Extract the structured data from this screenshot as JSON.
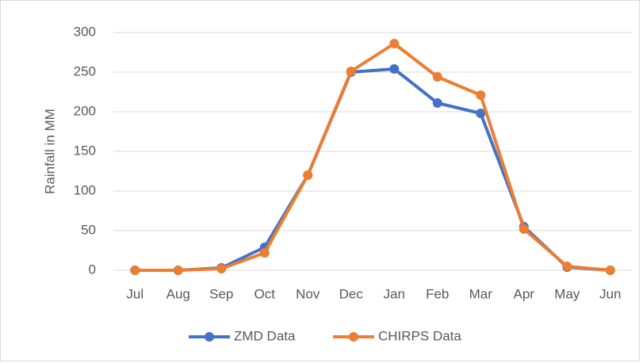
{
  "chart_data": {
    "type": "line",
    "y_label": "Rainfall in MM",
    "categories": [
      "Jul",
      "Aug",
      "Sep",
      "Oct",
      "Nov",
      "Dec",
      "Jan",
      "Feb",
      "Mar",
      "Apr",
      "May",
      "Jun"
    ],
    "series": [
      {
        "name": "ZMD Data",
        "color": "#4472c4",
        "values": [
          0,
          0,
          3,
          29,
          120,
          250,
          254,
          211,
          198,
          55,
          4,
          0
        ]
      },
      {
        "name": "CHIRPS Data",
        "color": "#ed7d31",
        "values": [
          0,
          0,
          2,
          22,
          120,
          251,
          286,
          244,
          221,
          52,
          5,
          0
        ]
      }
    ],
    "ylim": [
      0,
      300
    ],
    "yticks": [
      0,
      50,
      100,
      150,
      200,
      250,
      300
    ],
    "grid": true,
    "legend": "bottom"
  }
}
